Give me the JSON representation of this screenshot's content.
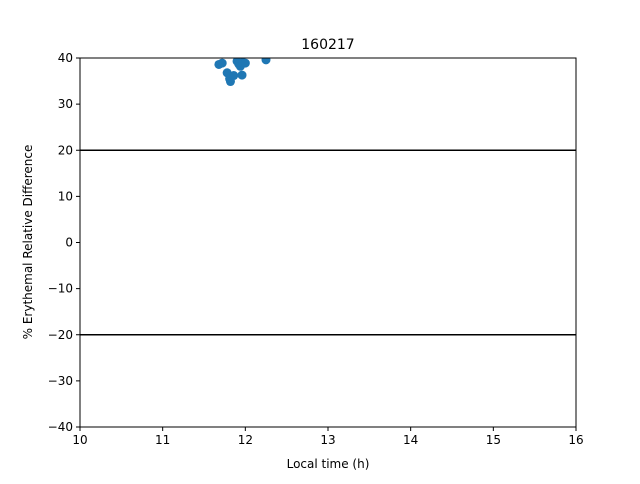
{
  "chart_data": {
    "type": "scatter",
    "title": "160217",
    "xlabel": "Local time (h)",
    "ylabel": "% Erythemal Relative Difference",
    "xlim": [
      10,
      16
    ],
    "ylim": [
      -40,
      40
    ],
    "xticks": [
      10,
      11,
      12,
      13,
      14,
      15,
      16
    ],
    "yticks": [
      -40,
      -30,
      -20,
      -10,
      0,
      10,
      20,
      30,
      40
    ],
    "grid": false,
    "reference_lines": [
      20,
      -20
    ],
    "colors": {
      "points": "#1f77b4",
      "reference_line": "#000000",
      "axes": "#000000"
    },
    "series": [
      {
        "points": [
          {
            "x": 11.68,
            "y": 38.6
          },
          {
            "x": 11.72,
            "y": 38.9
          },
          {
            "x": 11.78,
            "y": 36.8
          },
          {
            "x": 11.81,
            "y": 35.5
          },
          {
            "x": 11.82,
            "y": 34.9
          },
          {
            "x": 11.86,
            "y": 36.2
          },
          {
            "x": 11.9,
            "y": 39.3
          },
          {
            "x": 11.92,
            "y": 38.7
          },
          {
            "x": 11.94,
            "y": 38.2
          },
          {
            "x": 11.96,
            "y": 36.3
          },
          {
            "x": 11.97,
            "y": 39.0
          },
          {
            "x": 12.0,
            "y": 38.9
          },
          {
            "x": 12.25,
            "y": 39.6
          }
        ]
      }
    ]
  }
}
